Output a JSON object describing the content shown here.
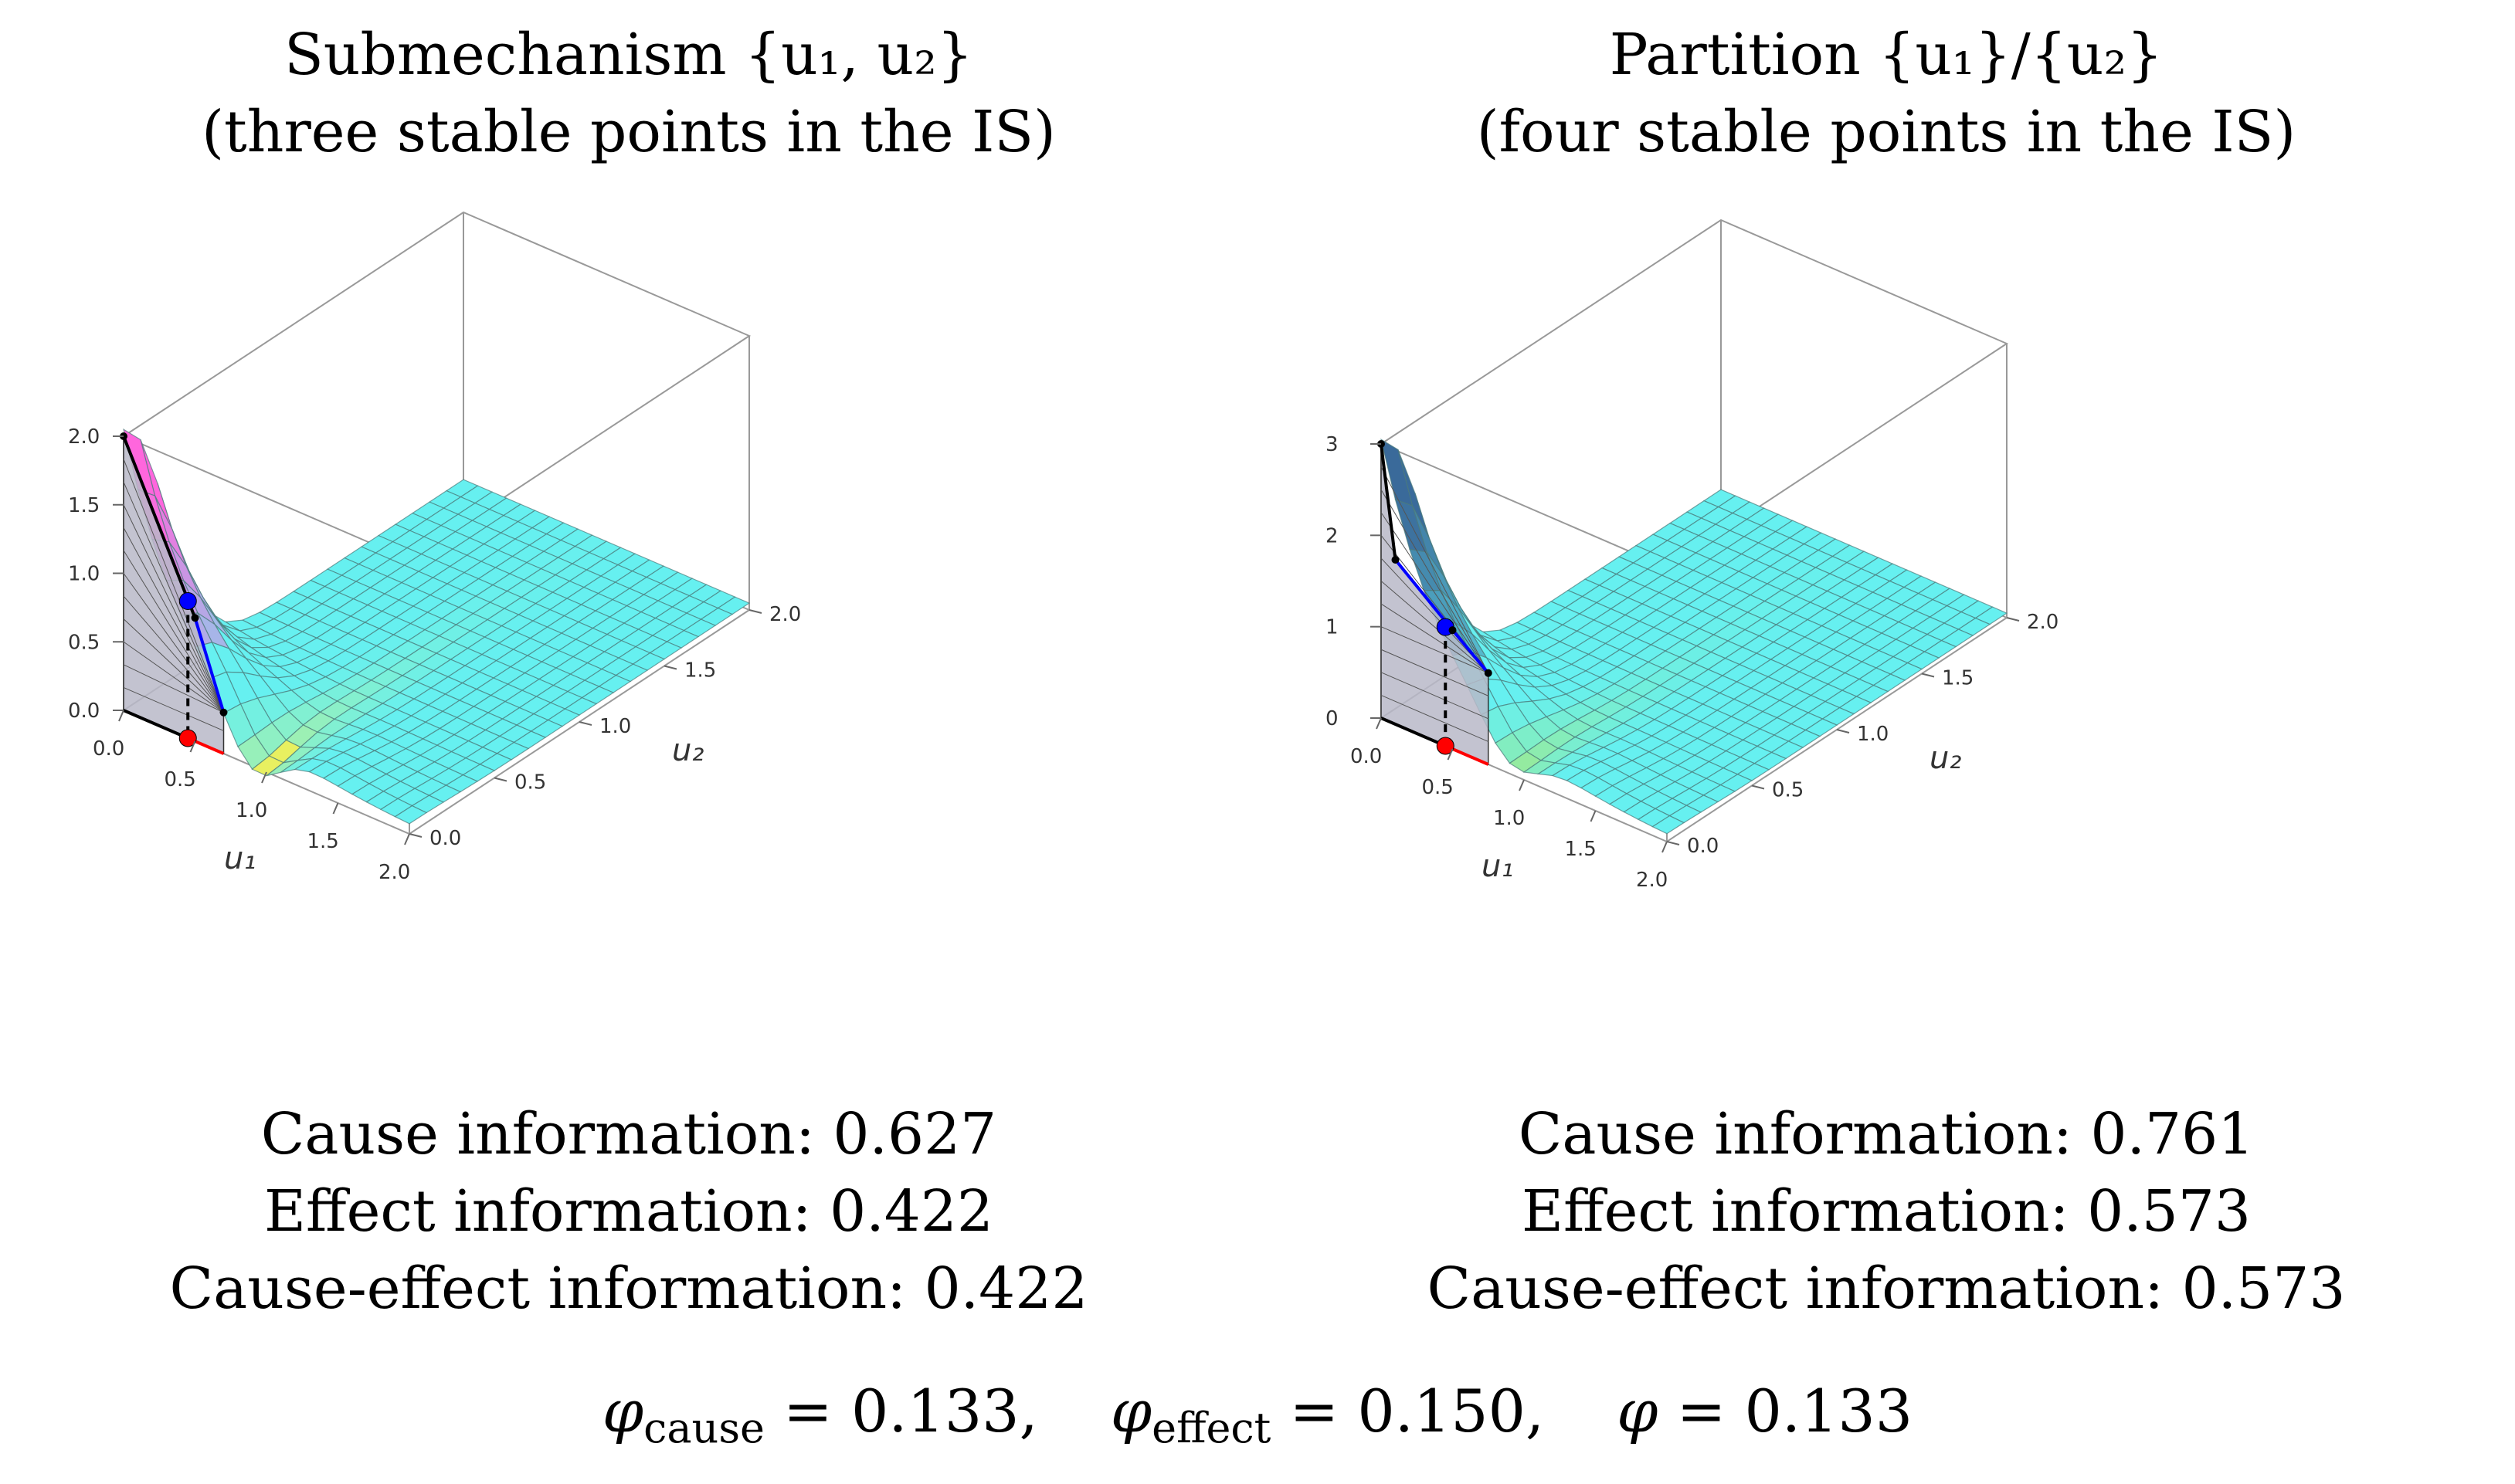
{
  "figure": {
    "phi_text": "φcause = 0.133,   φeffect = 0.150,   φ = 0.133"
  },
  "panels": [
    {
      "title_line1": "Submechanism {u₁, u₂}",
      "title_line2": "(three stable points in the IS)",
      "cause_info": "Cause information: 0.627",
      "effect_info": "Effect information: 0.422",
      "cause_effect_info": "Cause-effect information: 0.422"
    },
    {
      "title_line1": "Partition {u₁}/{u₂}",
      "title_line2": "(four stable points in the IS)",
      "cause_info": "Cause information: 0.761",
      "effect_info": "Effect information: 0.573",
      "cause_effect_info": "Cause-effect information: 0.573"
    }
  ],
  "phi": {
    "cause_symbol": "φ",
    "cause_sub": "cause",
    "cause_value": "= 0.133,",
    "effect_symbol": "φ",
    "effect_sub": "effect",
    "effect_value": "= 0.150,",
    "total_symbol": "φ",
    "total_value": "= 0.133"
  },
  "chart_data": [
    {
      "type": "surface3d",
      "title": "Submechanism {u₁, u₂}",
      "subtitle": "(three stable points in the IS)",
      "xlabel": "u₁",
      "ylabel": "u₂",
      "xlim": [
        0,
        2
      ],
      "ylim": [
        0,
        2
      ],
      "zlim": [
        0,
        2
      ],
      "xticks": [
        "0.0",
        "0.5",
        "1.0",
        "1.5",
        "2.0"
      ],
      "yticks": [
        "0.0",
        "0.5",
        "1.0",
        "1.5",
        "2.0"
      ],
      "zticks": [
        "0.0",
        "0.5",
        "1.0",
        "1.5",
        "2.0"
      ],
      "peak_height": 2.0,
      "grid_n": 20,
      "edge_curve": [
        [
          0,
          2.0
        ],
        [
          0.5,
          0.9
        ],
        [
          0.7,
          0.3
        ]
      ],
      "marked_points": [
        {
          "u1": 0.45,
          "z": 1.0,
          "color": "#0000ff"
        },
        {
          "u1": 0.45,
          "z": 0.0,
          "color": "#ff0000"
        }
      ],
      "colors": {
        "surface_flat": "#66f0f0",
        "dip": "#e8f060",
        "peak": "#ff66dd",
        "edge_blue": "#0000ff",
        "edge_red": "#ff0000"
      }
    },
    {
      "type": "surface3d",
      "title": "Partition {u₁}/{u₂}",
      "subtitle": "(four stable points in the IS)",
      "xlabel": "u₁",
      "ylabel": "u₂",
      "xlim": [
        0,
        2
      ],
      "ylim": [
        0,
        2
      ],
      "zlim": [
        0,
        3
      ],
      "xticks": [
        "0.0",
        "0.5",
        "1.0",
        "1.5",
        "2.0"
      ],
      "yticks": [
        "0.0",
        "0.5",
        "1.0",
        "1.5",
        "2.0"
      ],
      "zticks": [
        "0",
        "1",
        "2",
        "3"
      ],
      "peak_height": 3.0,
      "grid_n": 20,
      "edge_curve": [
        [
          0,
          3.0
        ],
        [
          0.1,
          1.8
        ],
        [
          0.5,
          1.3
        ],
        [
          0.75,
          1.0
        ]
      ],
      "marked_points": [
        {
          "u1": 0.45,
          "z": 1.3,
          "color": "#0000ff"
        },
        {
          "u1": 0.45,
          "z": 0.0,
          "color": "#ff0000"
        }
      ],
      "colors": {
        "surface_flat": "#66f0f0",
        "dip": "#b0e870",
        "peak": "#3a6a9a",
        "edge_blue": "#0000ff",
        "edge_red": "#ff0000"
      }
    }
  ]
}
